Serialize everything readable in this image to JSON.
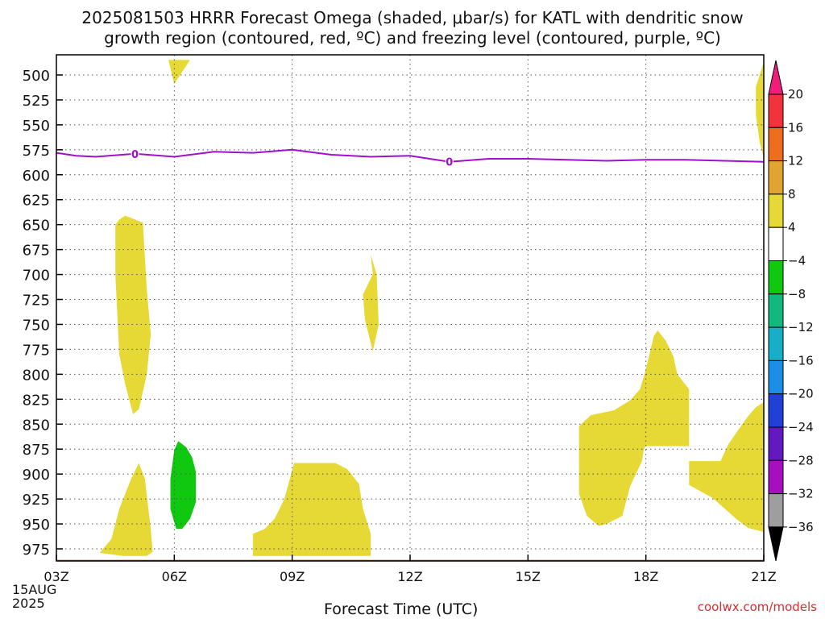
{
  "title_line1": "2025081503 HRRR Forecast Omega (shaded, μbar/s) for KATL with dendritic snow",
  "title_line2": "growth region (contoured, red, ºC) and freezing level (contoured, purple, ºC)",
  "credit": "coolwx.com/models",
  "chart_data": {
    "type": "contour",
    "xlabel": "Forecast Time (UTC)",
    "x_ticks": [
      "03Z",
      "06Z",
      "09Z",
      "12Z",
      "15Z",
      "18Z",
      "21Z"
    ],
    "x_tick_hours": [
      3,
      6,
      9,
      12,
      15,
      18,
      21
    ],
    "x_sublabels": [
      "15AUG",
      "2025"
    ],
    "y_ticks": [
      500,
      525,
      550,
      575,
      600,
      625,
      650,
      675,
      700,
      725,
      750,
      775,
      800,
      825,
      850,
      875,
      900,
      925,
      950,
      975
    ],
    "y_range_hPa": [
      485,
      988
    ],
    "grid": true,
    "colorbar": {
      "labels": [
        "20",
        "16",
        "12",
        "8",
        "4",
        "-4",
        "-8",
        "-12",
        "-16",
        "-20",
        "-24",
        "-28",
        "-32",
        "-36"
      ],
      "colors": [
        "#f01e7a",
        "#f2333b",
        "#ef6d1e",
        "#e0a430",
        "#e6d835",
        "#ffffff",
        "#0fc80f",
        "#12b97e",
        "#17afc7",
        "#1b8fe8",
        "#2040d8",
        "#6418c0",
        "#a50fc0",
        "#9e9e9e",
        "#000000"
      ]
    },
    "freezing_level": {
      "label": "0",
      "color": "#a010cc",
      "points": [
        [
          3.0,
          578
        ],
        [
          3.5,
          581
        ],
        [
          4.0,
          582
        ],
        [
          5.0,
          579
        ],
        [
          6.0,
          582
        ],
        [
          7.0,
          577
        ],
        [
          8.0,
          578
        ],
        [
          9.0,
          575
        ],
        [
          10.0,
          580
        ],
        [
          11.0,
          582
        ],
        [
          12.0,
          581
        ],
        [
          13.0,
          587
        ],
        [
          14.0,
          584
        ],
        [
          15.0,
          584
        ],
        [
          16.0,
          585
        ],
        [
          17.0,
          586
        ],
        [
          18.0,
          585
        ],
        [
          19.0,
          585
        ],
        [
          20.0,
          586
        ],
        [
          21.0,
          587
        ]
      ]
    },
    "shaded_regions": [
      {
        "fill": "#e6d835",
        "points": [
          [
            5.85,
            485
          ],
          [
            6.4,
            485
          ],
          [
            6.0,
            509
          ]
        ]
      },
      {
        "fill": "#e6d835",
        "points": [
          [
            4.5,
            650
          ],
          [
            4.6,
            645
          ],
          [
            4.75,
            641
          ],
          [
            5.2,
            648
          ],
          [
            5.3,
            715
          ],
          [
            5.4,
            760
          ],
          [
            5.3,
            800
          ],
          [
            5.1,
            835
          ],
          [
            4.95,
            840
          ],
          [
            4.75,
            810
          ],
          [
            4.6,
            780
          ],
          [
            4.55,
            740
          ],
          [
            4.5,
            700
          ]
        ]
      },
      {
        "fill": "#e6d835",
        "points": [
          [
            10.8,
            720
          ],
          [
            11.05,
            700
          ],
          [
            11.0,
            680
          ],
          [
            11.15,
            700
          ],
          [
            11.2,
            750
          ],
          [
            11.05,
            777
          ],
          [
            10.85,
            745
          ]
        ]
      },
      {
        "fill": "#e6d835",
        "points": [
          [
            4.1,
            979
          ],
          [
            4.4,
            965
          ],
          [
            4.6,
            935
          ],
          [
            4.9,
            905
          ],
          [
            5.1,
            889
          ],
          [
            5.25,
            905
          ],
          [
            5.4,
            955
          ],
          [
            5.45,
            978
          ],
          [
            5.3,
            982
          ],
          [
            4.7,
            982
          ]
        ]
      },
      {
        "fill": "#e6d835",
        "points": [
          [
            8.0,
            960
          ],
          [
            8.3,
            955
          ],
          [
            8.55,
            945
          ],
          [
            8.8,
            925
          ],
          [
            9.05,
            889
          ],
          [
            10.1,
            889
          ],
          [
            10.4,
            895
          ],
          [
            10.7,
            910
          ],
          [
            10.8,
            935
          ],
          [
            11.0,
            960
          ],
          [
            11.0,
            982
          ],
          [
            8.0,
            982
          ]
        ]
      },
      {
        "fill": "#e6d835",
        "points": [
          [
            16.3,
            852
          ],
          [
            16.6,
            841
          ],
          [
            17.2,
            836
          ],
          [
            17.6,
            826
          ],
          [
            17.85,
            815
          ],
          [
            18.0,
            795
          ],
          [
            18.2,
            762
          ],
          [
            18.3,
            756
          ],
          [
            18.5,
            766
          ],
          [
            18.7,
            782
          ],
          [
            18.8,
            800
          ],
          [
            19.1,
            815
          ],
          [
            19.1,
            872
          ],
          [
            18.0,
            872
          ],
          [
            17.95,
            875
          ],
          [
            17.9,
            887
          ],
          [
            17.6,
            912
          ],
          [
            17.4,
            942
          ],
          [
            17.0,
            950
          ],
          [
            16.8,
            952
          ],
          [
            16.5,
            942
          ],
          [
            16.3,
            920
          ]
        ]
      },
      {
        "fill": "#e6d835",
        "points": [
          [
            19.1,
            887
          ],
          [
            19.9,
            887
          ],
          [
            20.1,
            870
          ],
          [
            20.4,
            853
          ],
          [
            20.6,
            842
          ],
          [
            20.8,
            833
          ],
          [
            21.0,
            828
          ],
          [
            21.0,
            958
          ],
          [
            20.6,
            954
          ],
          [
            20.3,
            945
          ],
          [
            19.7,
            924
          ],
          [
            19.1,
            911
          ]
        ]
      },
      {
        "fill": "#e6d835",
        "points": [
          [
            20.8,
            512
          ],
          [
            21.0,
            487
          ],
          [
            21.0,
            583
          ],
          [
            20.9,
            568
          ],
          [
            20.8,
            540
          ]
        ]
      },
      {
        "fill": "#0fc80f",
        "points": [
          [
            5.9,
            905
          ],
          [
            6.0,
            876
          ],
          [
            6.1,
            867
          ],
          [
            6.3,
            873
          ],
          [
            6.45,
            883
          ],
          [
            6.55,
            898
          ],
          [
            6.55,
            928
          ],
          [
            6.4,
            945
          ],
          [
            6.2,
            955
          ],
          [
            6.05,
            955
          ],
          [
            5.9,
            935
          ]
        ]
      }
    ],
    "ground": {
      "color": "#a84e2a",
      "top_hPa": 982
    }
  }
}
